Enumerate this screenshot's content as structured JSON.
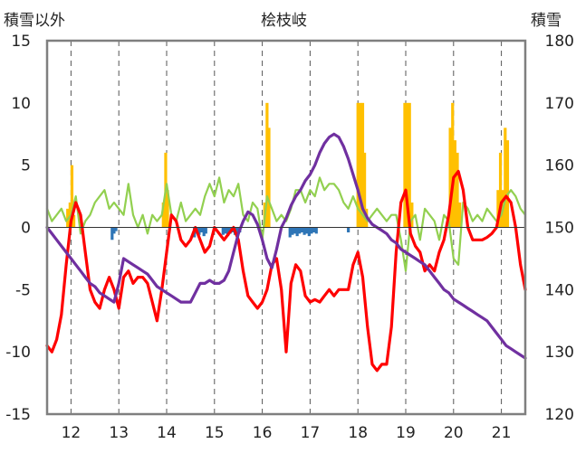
{
  "chart_data": {
    "type": "line",
    "title": "桧枝岐",
    "ylabel_left": "積雪以外",
    "ylabel_right": "積雪",
    "x_ticks": [
      "12",
      "13",
      "14",
      "15",
      "16",
      "17",
      "18",
      "19",
      "20",
      "21"
    ],
    "xlim": [
      11.5,
      21.5
    ],
    "ylim_left": [
      -15,
      15
    ],
    "yticks_left": [
      "15",
      "10",
      "5",
      "0",
      "-5",
      "-10",
      "-15"
    ],
    "ylim_right": [
      120,
      180
    ],
    "yticks_right": [
      "180",
      "170",
      "160",
      "150",
      "140",
      "130",
      "120"
    ],
    "grid": "vertical-dashed",
    "colors": {
      "red_series": "#ff0000",
      "green_series": "#92d050",
      "purple_series": "#7030a0",
      "orange_bars": "#ffc000",
      "blue_bars": "#2e75b6",
      "frame": "#7f7f7f"
    },
    "series": [
      {
        "axis": "left",
        "color": "#ff0000",
        "x": [
          11.5,
          11.6,
          11.7,
          11.8,
          11.9,
          12.0,
          12.1,
          12.2,
          12.3,
          12.4,
          12.5,
          12.6,
          12.7,
          12.8,
          12.9,
          13.0,
          13.1,
          13.2,
          13.3,
          13.4,
          13.5,
          13.6,
          13.7,
          13.8,
          13.9,
          14.0,
          14.1,
          14.2,
          14.3,
          14.4,
          14.5,
          14.6,
          14.7,
          14.8,
          14.9,
          15.0,
          15.1,
          15.2,
          15.3,
          15.4,
          15.5,
          15.6,
          15.7,
          15.8,
          15.9,
          16.0,
          16.1,
          16.2,
          16.3,
          16.4,
          16.5,
          16.6,
          16.7,
          16.8,
          16.9,
          17.0,
          17.1,
          17.2,
          17.3,
          17.4,
          17.5,
          17.6,
          17.7,
          17.8,
          17.9,
          18.0,
          18.1,
          18.2,
          18.3,
          18.4,
          18.5,
          18.6,
          18.7,
          18.8,
          18.9,
          19.0,
          19.1,
          19.2,
          19.3,
          19.4,
          19.5,
          19.6,
          19.7,
          19.8,
          19.9,
          20.0,
          20.1,
          20.2,
          20.3,
          20.4,
          20.5,
          20.6,
          20.7,
          20.8,
          20.9,
          21.0,
          21.1,
          21.2,
          21.3,
          21.4,
          21.5
        ],
        "values": [
          -9.5,
          -10.0,
          -9.0,
          -7.0,
          -3.0,
          0.5,
          2.0,
          1.0,
          -2.0,
          -5.0,
          -6.0,
          -6.5,
          -5.0,
          -4.0,
          -5.0,
          -6.5,
          -4.0,
          -3.5,
          -4.5,
          -4.0,
          -4.0,
          -4.5,
          -6.0,
          -7.5,
          -5.0,
          -2.0,
          1.0,
          0.5,
          -1.0,
          -1.5,
          -1.0,
          0.0,
          -1.0,
          -2.0,
          -1.5,
          0.0,
          -0.5,
          -1.0,
          -0.5,
          0.0,
          -1.0,
          -3.5,
          -5.5,
          -6.0,
          -6.5,
          -6.0,
          -5.0,
          -3.0,
          -2.5,
          -5.0,
          -10.0,
          -4.5,
          -3.0,
          -3.5,
          -5.5,
          -6.0,
          -5.8,
          -6.0,
          -5.5,
          -5.0,
          -5.5,
          -5.0,
          -5.0,
          -5.0,
          -3.0,
          -2.0,
          -4.0,
          -8.0,
          -11.0,
          -11.5,
          -11.0,
          -11.0,
          -8.0,
          -2.0,
          2.0,
          3.0,
          -0.5,
          -1.5,
          -2.0,
          -3.5,
          -3.0,
          -3.5,
          -2.0,
          -1.0,
          1.0,
          4.0,
          4.5,
          3.0,
          0.0,
          -1.0,
          -1.0,
          -1.0,
          -0.8,
          -0.5,
          0.0,
          2.0,
          2.5,
          2.0,
          0.0,
          -3.0,
          -5.0
        ]
      },
      {
        "axis": "left",
        "color": "#92d050",
        "x": [
          11.5,
          11.6,
          11.7,
          11.8,
          11.9,
          12.0,
          12.1,
          12.2,
          12.3,
          12.4,
          12.5,
          12.6,
          12.7,
          12.8,
          12.9,
          13.0,
          13.1,
          13.2,
          13.3,
          13.4,
          13.5,
          13.6,
          13.7,
          13.8,
          13.9,
          14.0,
          14.1,
          14.2,
          14.3,
          14.4,
          14.5,
          14.6,
          14.7,
          14.8,
          14.9,
          15.0,
          15.1,
          15.2,
          15.3,
          15.4,
          15.5,
          15.6,
          15.7,
          15.8,
          15.9,
          16.0,
          16.1,
          16.2,
          16.3,
          16.4,
          16.5,
          16.6,
          16.7,
          16.8,
          16.9,
          17.0,
          17.1,
          17.2,
          17.3,
          17.4,
          17.5,
          17.6,
          17.7,
          17.8,
          17.9,
          18.0,
          18.1,
          18.2,
          18.3,
          18.4,
          18.5,
          18.6,
          18.7,
          18.8,
          18.9,
          19.0,
          19.1,
          19.2,
          19.3,
          19.4,
          19.5,
          19.6,
          19.7,
          19.8,
          19.9,
          20.0,
          20.1,
          20.2,
          20.3,
          20.4,
          20.5,
          20.6,
          20.7,
          20.8,
          20.9,
          21.0,
          21.1,
          21.2,
          21.3,
          21.4,
          21.5
        ],
        "values": [
          1.5,
          0.5,
          1.0,
          1.5,
          0.5,
          1.0,
          2.5,
          -0.5,
          0.5,
          1.0,
          2.0,
          2.5,
          3.0,
          1.5,
          2.0,
          1.5,
          1.0,
          3.5,
          1.0,
          0.0,
          1.0,
          -0.5,
          1.0,
          0.5,
          1.0,
          3.5,
          1.0,
          0.5,
          2.0,
          0.5,
          1.0,
          1.5,
          1.0,
          2.5,
          3.5,
          2.5,
          4.0,
          2.0,
          3.0,
          2.5,
          3.5,
          1.0,
          0.5,
          2.0,
          1.5,
          -1.0,
          2.5,
          1.5,
          0.5,
          1.0,
          0.5,
          1.5,
          3.0,
          3.0,
          2.0,
          3.0,
          2.5,
          4.0,
          3.0,
          3.5,
          3.5,
          3.0,
          2.0,
          1.5,
          2.5,
          1.5,
          1.0,
          0.5,
          1.0,
          1.5,
          1.0,
          0.5,
          1.0,
          1.0,
          -1.0,
          -3.5,
          0.5,
          1.0,
          -1.0,
          1.5,
          1.0,
          0.5,
          -1.0,
          1.0,
          0.5,
          -2.5,
          -3.0,
          2.0,
          1.5,
          0.5,
          1.0,
          0.5,
          1.5,
          1.0,
          0.5,
          1.0,
          2.5,
          3.0,
          2.5,
          1.5,
          1.0
        ]
      },
      {
        "axis": "right",
        "color": "#7030a0",
        "x": [
          11.5,
          11.6,
          11.7,
          11.8,
          11.9,
          12.0,
          12.1,
          12.2,
          12.3,
          12.4,
          12.5,
          12.6,
          12.7,
          12.8,
          12.9,
          13.0,
          13.1,
          13.2,
          13.3,
          13.4,
          13.5,
          13.6,
          13.7,
          13.8,
          13.9,
          14.0,
          14.1,
          14.2,
          14.3,
          14.4,
          14.5,
          14.6,
          14.7,
          14.8,
          14.9,
          15.0,
          15.1,
          15.2,
          15.3,
          15.4,
          15.5,
          15.6,
          15.7,
          15.8,
          15.9,
          16.0,
          16.1,
          16.2,
          16.3,
          16.4,
          16.5,
          16.6,
          16.7,
          16.8,
          16.9,
          17.0,
          17.1,
          17.2,
          17.3,
          17.4,
          17.5,
          17.6,
          17.7,
          17.8,
          17.9,
          18.0,
          18.1,
          18.2,
          18.3,
          18.4,
          18.5,
          18.6,
          18.7,
          18.8,
          18.9,
          19.0,
          19.1,
          19.2,
          19.3,
          19.4,
          19.5,
          19.6,
          19.7,
          19.8,
          19.9,
          20.0,
          20.1,
          20.2,
          20.3,
          20.4,
          20.5,
          20.6,
          20.7,
          20.8,
          20.9,
          21.0,
          21.1,
          21.2,
          21.3,
          21.4,
          21.5
        ],
        "values": [
          150.0,
          149.0,
          148.0,
          147.0,
          146.0,
          145.0,
          144.0,
          143.0,
          142.0,
          141.0,
          140.5,
          139.5,
          139.0,
          138.5,
          138.0,
          141.0,
          145.0,
          144.5,
          144.0,
          143.5,
          143.0,
          142.5,
          141.5,
          140.5,
          140.0,
          139.5,
          139.0,
          138.5,
          138.0,
          138.0,
          138.0,
          139.5,
          141.0,
          141.0,
          141.5,
          141.0,
          141.0,
          141.5,
          143.0,
          146.0,
          149.0,
          151.0,
          152.5,
          152.0,
          150.5,
          148.0,
          145.0,
          143.5,
          146.5,
          150.0,
          151.5,
          153.5,
          155.0,
          156.0,
          157.5,
          158.5,
          160.0,
          162.0,
          163.5,
          164.5,
          165.0,
          164.5,
          163.0,
          161.0,
          158.5,
          156.0,
          153.0,
          151.5,
          150.5,
          150.0,
          149.5,
          149.0,
          148.0,
          147.5,
          146.5,
          146.0,
          145.5,
          145.0,
          144.5,
          144.0,
          143.0,
          142.0,
          141.0,
          140.0,
          139.5,
          138.5,
          138.0,
          137.5,
          137.0,
          136.5,
          136.0,
          135.5,
          135.0,
          134.0,
          133.0,
          132.0,
          131.0,
          130.5,
          130.0,
          129.5,
          129.0
        ]
      }
    ],
    "bars_orange": {
      "axis": "left",
      "color": "#ffc000",
      "x": [
        11.93,
        11.98,
        12.02,
        12.06,
        13.93,
        13.98,
        14.02,
        16.05,
        16.1,
        16.14,
        18.0,
        18.05,
        18.1,
        18.14,
        18.18,
        18.98,
        19.03,
        19.08,
        19.13,
        19.93,
        19.98,
        20.03,
        20.08,
        20.13,
        20.93,
        20.98,
        21.03,
        21.08,
        21.13
      ],
      "values": [
        1.5,
        2.0,
        5.0,
        1.0,
        2.0,
        6.0,
        3.0,
        2.0,
        10.0,
        8.0,
        10.0,
        10.0,
        10.0,
        6.0,
        1.5,
        10.0,
        10.0,
        10.0,
        2.0,
        8.0,
        10.0,
        7.0,
        6.0,
        2.0,
        3.0,
        6.0,
        3.0,
        8.0,
        7.0
      ]
    },
    "bars_blue": {
      "axis": "left",
      "color": "#2e75b6",
      "x": [
        12.86,
        12.9,
        12.94,
        14.58,
        14.63,
        14.68,
        14.73,
        14.78,
        14.82,
        15.18,
        15.23,
        15.28,
        15.33,
        15.38,
        15.43,
        15.48,
        15.53,
        16.58,
        16.63,
        16.68,
        16.73,
        16.78,
        16.83,
        16.88,
        16.93,
        16.98,
        17.03,
        17.08,
        17.13,
        17.8
      ],
      "values": [
        -1.0,
        -0.5,
        -0.3,
        -0.8,
        -0.5,
        -0.6,
        -0.4,
        -0.7,
        -0.5,
        -0.6,
        -0.5,
        -0.7,
        -0.5,
        -0.4,
        -0.6,
        -0.5,
        -0.4,
        -0.8,
        -0.6,
        -0.5,
        -0.7,
        -0.5,
        -0.4,
        -0.6,
        -0.5,
        -0.7,
        -0.5,
        -0.4,
        -0.5,
        -0.4
      ]
    }
  }
}
